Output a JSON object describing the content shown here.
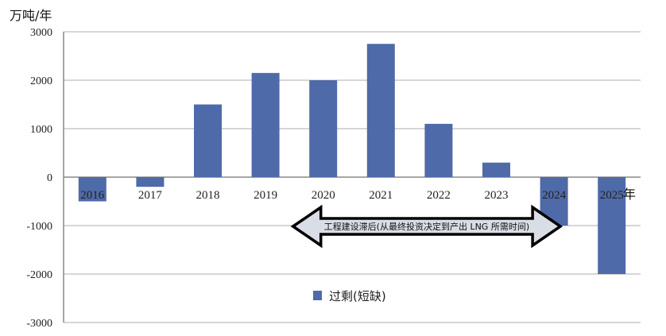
{
  "chart_data": {
    "type": "bar",
    "title": "",
    "ylabel": "万吨/年",
    "xlabel": "年",
    "categories": [
      "2016",
      "2017",
      "2018",
      "2019",
      "2020",
      "2021",
      "2022",
      "2023",
      "2024",
      "2025"
    ],
    "series": [
      {
        "name": "过剩(短缺)",
        "color": "#4f6aa8",
        "values": [
          -500,
          -200,
          1500,
          2150,
          2000,
          2750,
          1100,
          300,
          -1000,
          -2000
        ]
      }
    ],
    "ylim": [
      -3000,
      3000
    ],
    "yticks": [
      "3000",
      "2000",
      "1000",
      "0",
      "-1000",
      "-2000",
      "-3000"
    ],
    "grid": true,
    "legend_position": "bottom-center",
    "annotation": {
      "text": "工程建设滞后(从最终投资决定到产出 LNG 所需时间)",
      "type": "double-arrow",
      "from": "2020",
      "to": "2024"
    }
  }
}
